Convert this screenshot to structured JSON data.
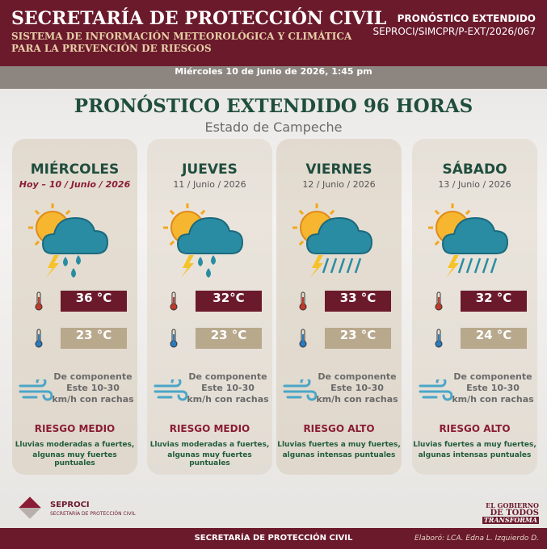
{
  "header": {
    "title": "SECRETARÍA DE PROTECCIÓN CIVIL",
    "subtitle_lines": [
      "SISTEMA DE INFORMACIÓN METEOROLÓGICA Y CLIMÁTICA",
      "PARA LA PREVENCIÓN DE RIESGOS"
    ],
    "doc_type": "PRONÓSTICO EXTENDIDO",
    "doc_id": "SEPROCI/SIMCPR/P-EXT/2026/067"
  },
  "date_line": "Miércoles 10 de junio de 2026, 1:45 pm",
  "title": "PRONÓSTICO EXTENDIDO 96 HORAS",
  "region": "Estado de Campeche",
  "days": [
    {
      "name": "MIÉRCOLES",
      "date": "Hoy – 10 / Junio / 2026",
      "max": "36 °C",
      "min": "23 °C",
      "wind": [
        "De componente",
        "Este 10-30",
        "km/h con rachas"
      ],
      "risk": "RIESGO MEDIO",
      "description": [
        "Lluvias moderadas a fuertes,",
        "algunas muy fuertes puntuales"
      ]
    },
    {
      "name": "JUEVES",
      "date": "11 / Junio / 2026",
      "max": "32°C",
      "min": "23 °C",
      "wind": [
        "De componente",
        "Este 10-30",
        "km/h con rachas"
      ],
      "risk": "RIESGO MEDIO",
      "description": [
        "Lluvias moderadas a fuertes,",
        "algunas muy fuertes puntuales"
      ]
    },
    {
      "name": "VIERNES",
      "date": "12 / Junio / 2026",
      "max": "33 °C",
      "min": "23 °C",
      "wind": [
        "De componente",
        "Este 10-30",
        "km/h con rachas"
      ],
      "risk": "RIESGO ALTO",
      "description": [
        "Lluvias fuertes a muy fuertes,",
        "algunas intensas puntuales"
      ]
    },
    {
      "name": "SÁBADO",
      "date": "13 / Junio / 2026",
      "max": "32 °C",
      "min": "24 °C",
      "wind": [
        "De componente",
        "Este 10-30",
        "km/h con rachas"
      ],
      "risk": "RIESGO ALTO",
      "description": [
        "Lluvias fuertes a muy fuertes,",
        "algunas intensas puntuales"
      ]
    }
  ],
  "footer": {
    "logo_name": "SEPROCI",
    "logo_sub": "SECRETARÍA DE PROTECCIÓN CIVIL",
    "gov_logo": [
      "EL GOBIERNO",
      "DE TODOS",
      "TRANSFORMA"
    ],
    "center": "SECRETARÍA DE PROTECCIÓN CIVIL",
    "credit": "Elaboró: LCA. Edna L. Izquierdo D."
  }
}
